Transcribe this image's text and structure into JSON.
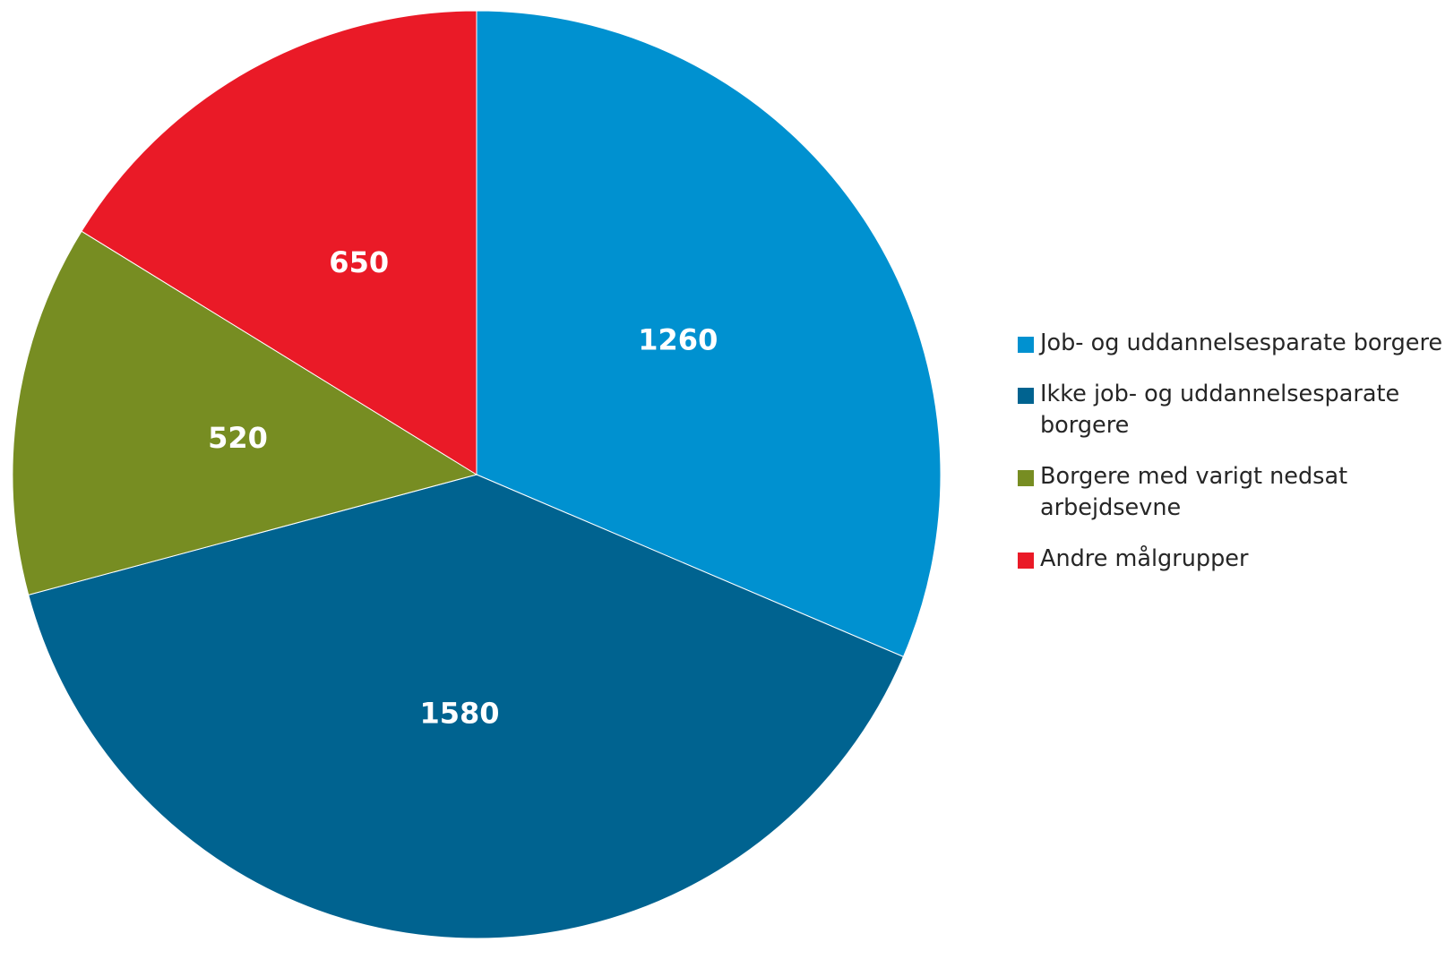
{
  "chart_data": {
    "type": "pie",
    "title": "",
    "slices": [
      {
        "label": "Job- og uddannelsesparate borgere",
        "value": 1260,
        "value_label": "1260",
        "color": "#0091D0"
      },
      {
        "label": "Ikke job- og uddannelsesparate borgere",
        "value": 1580,
        "value_label": "1580",
        "color": "#006390"
      },
      {
        "label": "Borgere med varigt nedsat arbejdsevne",
        "value": 520,
        "value_label": "520",
        "color": "#778D22"
      },
      {
        "label": "Andre målgrupper",
        "value": 650,
        "value_label": "650",
        "color": "#EA1A27"
      }
    ],
    "start_angle": "12 o'clock",
    "direction": "clockwise",
    "legend_position": "right"
  }
}
